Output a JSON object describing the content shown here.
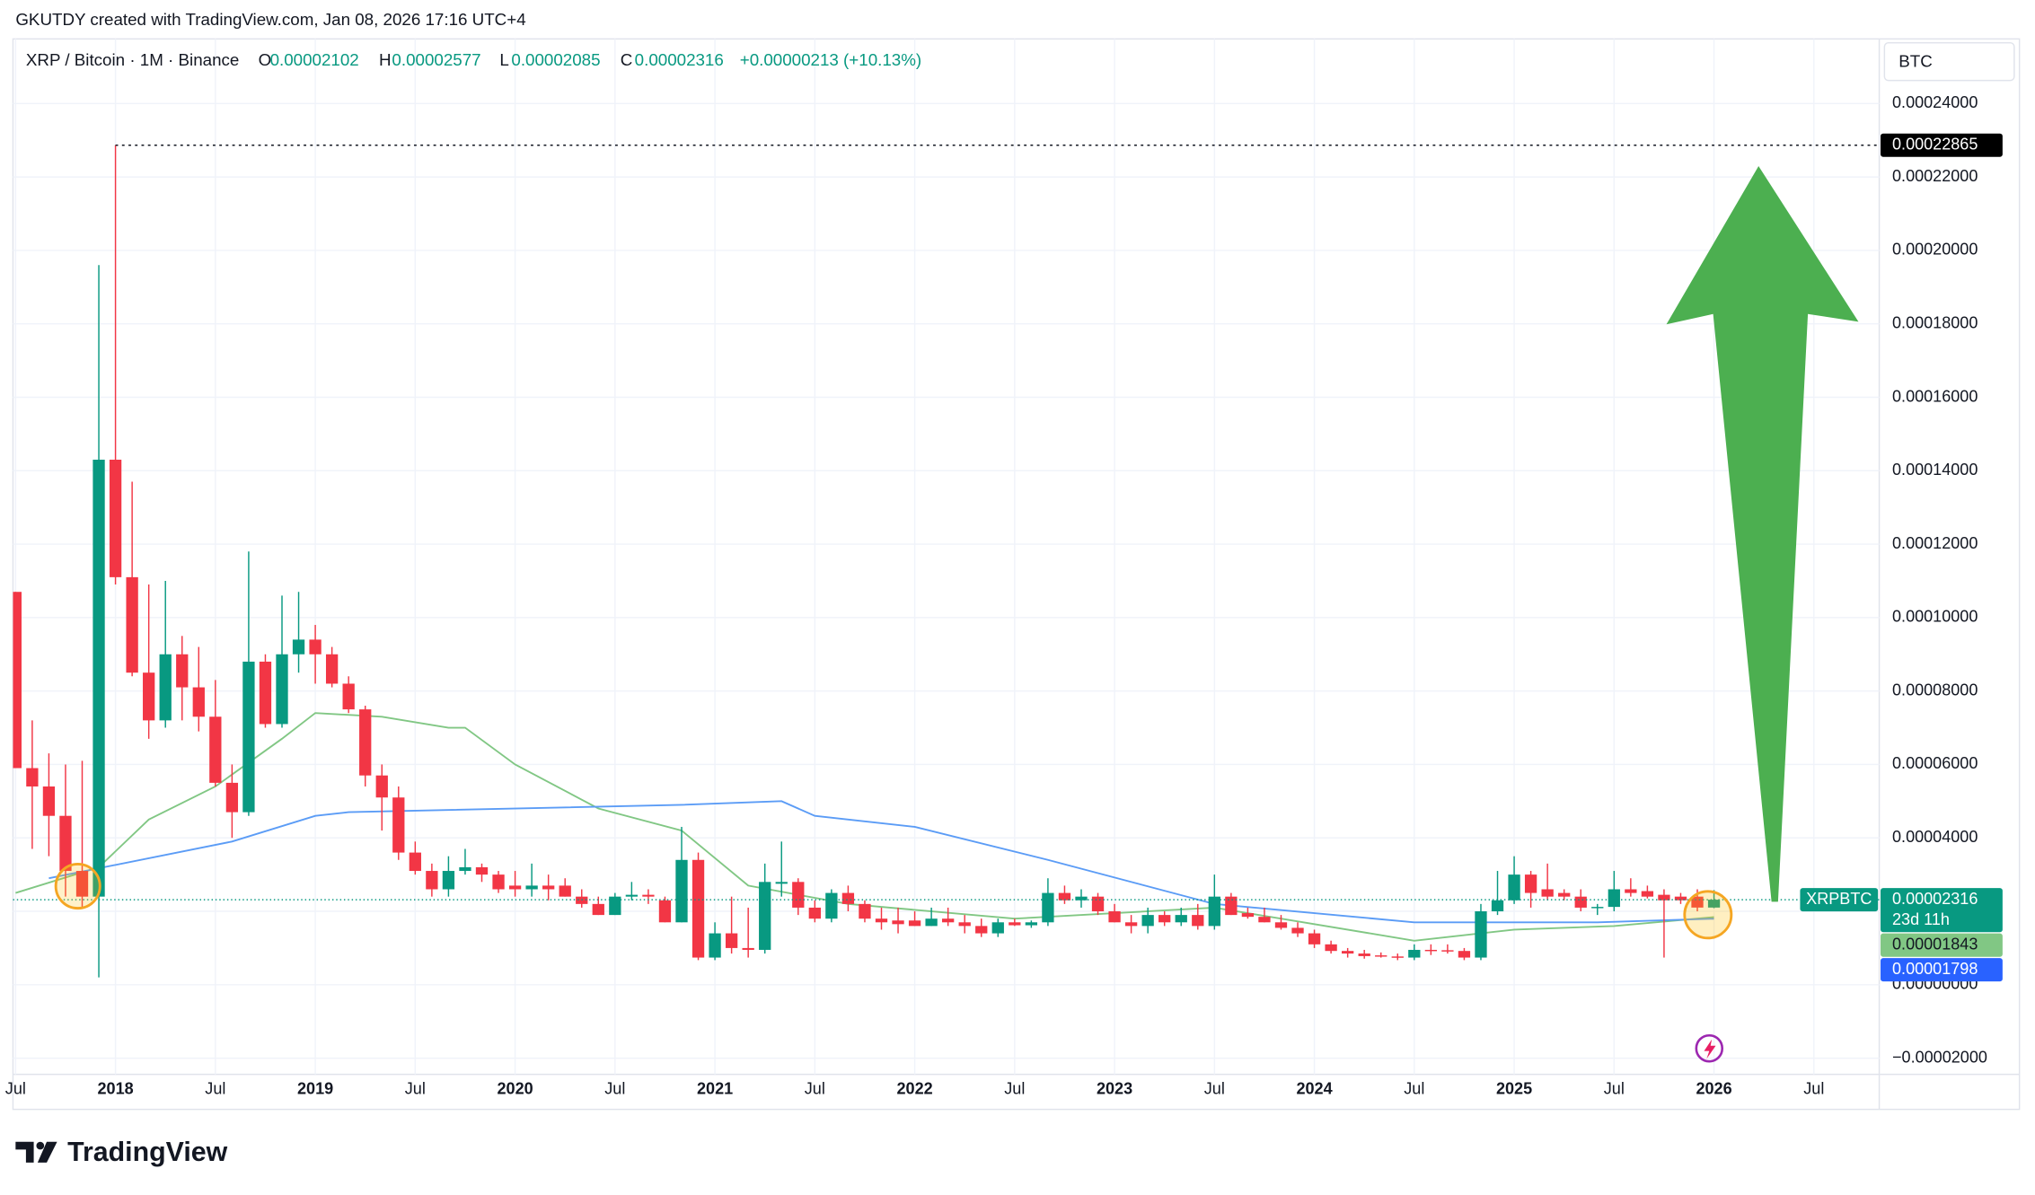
{
  "header": {
    "attribution": "GKUTDY created with TradingView.com, Jan 08, 2026 17:16 UTC+4",
    "symbol": "XRP / Bitcoin · 1M · Binance",
    "open_label": "O",
    "high_label": "H",
    "low_label": "L",
    "close_label": "C",
    "change": "+0.00000213 (+10.13%)"
  },
  "currency": "BTC",
  "countdown": "23d 11h",
  "brand": "TradingView",
  "chart_data": {
    "type": "candlestick",
    "categories": [
      "2017-07",
      "2017-08",
      "2017-09",
      "2017-10",
      "2017-11",
      "2017-12",
      "2018-01",
      "2018-02",
      "2018-03",
      "2018-04",
      "2018-05",
      "2018-06",
      "2018-07",
      "2018-08",
      "2018-09",
      "2018-10",
      "2018-11",
      "2018-12",
      "2019-01",
      "2019-02",
      "2019-03",
      "2019-04",
      "2019-05",
      "2019-06",
      "2019-07",
      "2019-08",
      "2019-09",
      "2019-10",
      "2019-11",
      "2019-12",
      "2020-01",
      "2020-02",
      "2020-03",
      "2020-04",
      "2020-05",
      "2020-06",
      "2020-07",
      "2020-08",
      "2020-09",
      "2020-10",
      "2020-11",
      "2020-12",
      "2021-01",
      "2021-02",
      "2021-03",
      "2021-04",
      "2021-05",
      "2021-06",
      "2021-07",
      "2021-08",
      "2021-09",
      "2021-10",
      "2021-11",
      "2021-12",
      "2022-01",
      "2022-02",
      "2022-03",
      "2022-04",
      "2022-05",
      "2022-06",
      "2022-07",
      "2022-08",
      "2022-09",
      "2022-10",
      "2022-11",
      "2022-12",
      "2023-01",
      "2023-02",
      "2023-03",
      "2023-04",
      "2023-05",
      "2023-06",
      "2023-07",
      "2023-08",
      "2023-09",
      "2023-10",
      "2023-11",
      "2023-12",
      "2024-01",
      "2024-02",
      "2024-03",
      "2024-04",
      "2024-05",
      "2024-06",
      "2024-07",
      "2024-08",
      "2024-09",
      "2024-10",
      "2024-11",
      "2024-12",
      "2025-01",
      "2025-02",
      "2025-03",
      "2025-04",
      "2025-05",
      "2025-06",
      "2025-07",
      "2025-08",
      "2025-09",
      "2025-10",
      "2025-11",
      "2025-12",
      "2026-01"
    ],
    "series": [
      {
        "name": "XRPBTC",
        "up_color": "#089981",
        "down_color": "#f23645",
        "open": [
          0.000107,
          5.9e-05,
          5.4e-05,
          4.6e-05,
          3.1e-05,
          2.4e-05,
          0.000143,
          0.000111,
          8.5e-05,
          7.2e-05,
          9e-05,
          8.1e-05,
          7.3e-05,
          5.5e-05,
          4.7e-05,
          8.8e-05,
          7.1e-05,
          9e-05,
          9.4e-05,
          9e-05,
          8.2e-05,
          7.5e-05,
          5.7e-05,
          5.1e-05,
          3.6e-05,
          3.1e-05,
          2.6e-05,
          3.1e-05,
          3.2e-05,
          3e-05,
          2.7e-05,
          2.6e-05,
          2.7e-05,
          2.7e-05,
          2.4e-05,
          2.2e-05,
          1.9e-05,
          2.4e-05,
          2.45e-05,
          2.3e-05,
          1.7e-05,
          3.4e-05,
          7.4e-06,
          1.4e-05,
          1e-05,
          9.5e-06,
          2.75e-05,
          2.8e-05,
          2.1e-05,
          1.8e-05,
          2.5e-05,
          2.2e-05,
          1.8e-05,
          1.75e-05,
          1.75e-05,
          1.6e-05,
          1.8e-05,
          1.7e-05,
          1.6e-05,
          1.4e-05,
          1.7e-05,
          1.62e-05,
          1.7e-05,
          2.5e-05,
          2.3e-05,
          2.4e-05,
          2e-05,
          1.7e-05,
          1.6e-05,
          1.9e-05,
          1.7e-05,
          1.9e-05,
          1.6e-05,
          2.4e-05,
          1.95e-05,
          1.85e-05,
          1.7e-05,
          1.55e-05,
          1.4e-05,
          1.1e-05,
          9.2e-06,
          8.5e-06,
          8e-06,
          7.7e-06,
          7.4e-06,
          9.5e-06,
          9.4e-06,
          9.2e-06,
          7.4e-06,
          2e-05,
          2.3e-05,
          3e-05,
          2.6e-05,
          2.5e-05,
          2.4e-05,
          2.1e-05,
          2.12e-05,
          2.6e-05,
          2.55e-05,
          2.45e-05,
          2.4e-05,
          2.4e-05,
          2.102e-05
        ],
        "high": [
          0.000107,
          7.2e-05,
          6.3e-05,
          6e-05,
          6.1e-05,
          0.000196,
          0.00022865,
          0.000137,
          0.000109,
          0.00011,
          9.5e-05,
          9.2e-05,
          8.3e-05,
          6e-05,
          0.000118,
          9e-05,
          0.000106,
          0.000107,
          9.8e-05,
          9.2e-05,
          8.4e-05,
          7.6e-05,
          6e-05,
          5.4e-05,
          3.9e-05,
          3.3e-05,
          3.5e-05,
          3.7e-05,
          3.3e-05,
          3.1e-05,
          3.1e-05,
          3.3e-05,
          3e-05,
          2.9e-05,
          2.6e-05,
          2.4e-05,
          2.5e-05,
          2.8e-05,
          2.6e-05,
          2.4e-05,
          4.3e-05,
          3.6e-05,
          1.7e-05,
          2.4e-05,
          2.1e-05,
          3.3e-05,
          3.9e-05,
          2.9e-05,
          2.3e-05,
          2.6e-05,
          2.7e-05,
          2.3e-05,
          2.1e-05,
          2.1e-05,
          2e-05,
          2.1e-05,
          2.1e-05,
          1.9e-05,
          1.8e-05,
          1.8e-05,
          1.8e-05,
          1.75e-05,
          2.9e-05,
          2.7e-05,
          2.6e-05,
          2.5e-05,
          2.2e-05,
          1.9e-05,
          2.1e-05,
          2e-05,
          2.1e-05,
          2.2e-05,
          3e-05,
          2.5e-05,
          2.1e-05,
          2.1e-05,
          1.9e-05,
          1.7e-05,
          1.5e-05,
          1.2e-05,
          1e-05,
          9.5e-06,
          8.8e-06,
          8.5e-06,
          1.1e-05,
          1.1e-05,
          1.1e-05,
          1e-05,
          2.2e-05,
          3.1e-05,
          3.5e-05,
          3.1e-05,
          3.3e-05,
          2.6e-05,
          2.6e-05,
          2.2e-05,
          3.1e-05,
          2.9e-05,
          2.7e-05,
          2.6e-05,
          2.5e-05,
          2.6e-05,
          2.577e-05
        ],
        "low": [
          5.9e-05,
          3.7e-05,
          3.5e-05,
          2.4e-05,
          2.1e-05,
          2e-06,
          0.000109,
          8.4e-05,
          6.7e-05,
          7e-05,
          7.2e-05,
          6.9e-05,
          5.4e-05,
          4e-05,
          4.6e-05,
          7e-05,
          7e-05,
          8.5e-05,
          8.2e-05,
          8.1e-05,
          7.4e-05,
          5.4e-05,
          4.2e-05,
          3.4e-05,
          3e-05,
          2.4e-05,
          2.4e-05,
          3e-05,
          2.8e-05,
          2.5e-05,
          2.4e-05,
          2.4e-05,
          2.3e-05,
          2.4e-05,
          2.1e-05,
          1.9e-05,
          1.9e-05,
          2.3e-05,
          2.2e-05,
          1.7e-05,
          1.7e-05,
          6.7e-06,
          6.7e-06,
          8.5e-06,
          7.4e-06,
          8.5e-06,
          2.4e-05,
          1.9e-05,
          1.7e-05,
          1.7e-05,
          2e-05,
          1.7e-05,
          1.5e-05,
          1.4e-05,
          1.6e-05,
          1.6e-05,
          1.6e-05,
          1.4e-05,
          1.3e-05,
          1.3e-05,
          1.6e-05,
          1.55e-05,
          1.6e-05,
          2.2e-05,
          2.1e-05,
          1.9e-05,
          1.7e-05,
          1.4e-05,
          1.4e-05,
          1.6e-05,
          1.6e-05,
          1.5e-05,
          1.5e-05,
          1.9e-05,
          1.8e-05,
          1.7e-05,
          1.5e-05,
          1.3e-05,
          1e-05,
          8.5e-06,
          7.4e-06,
          7.1e-06,
          7.4e-06,
          6.7e-06,
          6.7e-06,
          8.1e-06,
          8.5e-06,
          6.7e-06,
          6.7e-06,
          1.9e-05,
          2.2e-05,
          2.1e-05,
          2.3e-05,
          2.3e-05,
          2e-05,
          1.9e-05,
          2e-05,
          2.4e-05,
          2.35e-05,
          7.4e-06,
          2.2e-05,
          2e-05,
          2.085e-05
        ],
        "close": [
          5.9e-05,
          5.4e-05,
          4.6e-05,
          3.1e-05,
          2.4e-05,
          0.000143,
          0.000111,
          8.5e-05,
          7.2e-05,
          9e-05,
          8.1e-05,
          7.3e-05,
          5.5e-05,
          4.7e-05,
          8.8e-05,
          7.1e-05,
          9e-05,
          9.4e-05,
          9e-05,
          8.2e-05,
          7.5e-05,
          5.7e-05,
          5.1e-05,
          3.6e-05,
          3.1e-05,
          2.6e-05,
          3.1e-05,
          3.2e-05,
          3e-05,
          2.6e-05,
          2.6e-05,
          2.7e-05,
          2.6e-05,
          2.4e-05,
          2.2e-05,
          1.9e-05,
          2.4e-05,
          2.45e-05,
          2.4e-05,
          1.7e-05,
          3.4e-05,
          7.4e-06,
          1.4e-05,
          1e-05,
          9.5e-06,
          2.8e-05,
          2.8e-05,
          2.1e-05,
          1.8e-05,
          2.5e-05,
          2.2e-05,
          1.8e-05,
          1.7e-05,
          1.65e-05,
          1.6e-05,
          1.8e-05,
          1.7e-05,
          1.6e-05,
          1.4e-05,
          1.7e-05,
          1.62e-05,
          1.7e-05,
          2.5e-05,
          2.3e-05,
          2.4e-05,
          2e-05,
          1.7e-05,
          1.6e-05,
          1.9e-05,
          1.7e-05,
          1.9e-05,
          1.6e-05,
          2.4e-05,
          1.9e-05,
          1.85e-05,
          1.7e-05,
          1.55e-05,
          1.4e-05,
          1.1e-05,
          9.2e-06,
          8.5e-06,
          7.8e-06,
          7.7e-06,
          7.4e-06,
          9.5e-06,
          9.2e-06,
          9.1e-06,
          7.4e-06,
          2e-05,
          2.3e-05,
          3e-05,
          2.5e-05,
          2.4e-05,
          2.4e-05,
          2.1e-05,
          2.12e-05,
          2.6e-05,
          2.5e-05,
          2.4e-05,
          2.3e-05,
          2.3e-05,
          2.102e-05,
          2.316e-05
        ]
      }
    ],
    "moving_averages": [
      {
        "color": "#81c784",
        "x": [
          "2017-07",
          "2017-12",
          "2018-03",
          "2018-07",
          "2018-11",
          "2019-01",
          "2019-05",
          "2019-09",
          "2019-10",
          "2020-01",
          "2020-06",
          "2020-11",
          "2021-03",
          "2021-09",
          "2022-07",
          "2023-07",
          "2024-07",
          "2025-01",
          "2025-07",
          "2026-01"
        ],
        "values": [
          2.5e-05,
          3.2e-05,
          4.5e-05,
          5.4e-05,
          6.7e-05,
          7.4e-05,
          7.3e-05,
          7e-05,
          7e-05,
          6e-05,
          4.8e-05,
          4.2e-05,
          2.7e-05,
          2.2e-05,
          1.8e-05,
          2.1e-05,
          1.2e-05,
          1.5e-05,
          1.6e-05,
          1.843e-05
        ]
      },
      {
        "color": "#5b9cf6",
        "x": [
          "2017-09",
          "2018-08",
          "2019-01",
          "2019-03",
          "2020-11",
          "2021-05",
          "2021-07",
          "2022-01",
          "2022-09",
          "2023-07",
          "2024-07",
          "2025-06",
          "2026-01"
        ],
        "values": [
          2.9e-05,
          3.9e-05,
          4.6e-05,
          4.7e-05,
          4.9e-05,
          5e-05,
          4.6e-05,
          4.3e-05,
          3.4e-05,
          2.2e-05,
          1.7e-05,
          1.7e-05,
          1.798e-05
        ]
      }
    ],
    "ylim": [
      -2.44e-05,
      0.0002576
    ],
    "yticks": [
      {
        "value": -2e-05,
        "label": "−0.00002000"
      },
      {
        "value": 0,
        "label": "0.00000000"
      },
      {
        "value": 2e-05,
        "label": "0.00002000"
      },
      {
        "value": 4e-05,
        "label": "0.00004000"
      },
      {
        "value": 6e-05,
        "label": "0.00006000"
      },
      {
        "value": 8e-05,
        "label": "0.00008000"
      },
      {
        "value": 0.0001,
        "label": "0.00010000"
      },
      {
        "value": 0.00012,
        "label": "0.00012000"
      },
      {
        "value": 0.00014,
        "label": "0.00014000"
      },
      {
        "value": 0.00016,
        "label": "0.00016000"
      },
      {
        "value": 0.00018,
        "label": "0.00018000"
      },
      {
        "value": 0.0002,
        "label": "0.00020000"
      },
      {
        "value": 0.00022,
        "label": "0.00022000"
      },
      {
        "value": 0.00024,
        "label": "0.00024000"
      }
    ],
    "xticks": [
      {
        "value": "2017-07",
        "label": "Jul"
      },
      {
        "value": "2018-01",
        "label": "2018"
      },
      {
        "value": "2018-07",
        "label": "Jul"
      },
      {
        "value": "2019-01",
        "label": "2019"
      },
      {
        "value": "2019-07",
        "label": "Jul"
      },
      {
        "value": "2020-01",
        "label": "2020"
      },
      {
        "value": "2020-07",
        "label": "Jul"
      },
      {
        "value": "2021-01",
        "label": "2021"
      },
      {
        "value": "2021-07",
        "label": "Jul"
      },
      {
        "value": "2022-01",
        "label": "2022"
      },
      {
        "value": "2022-07",
        "label": "Jul"
      },
      {
        "value": "2023-01",
        "label": "2023"
      },
      {
        "value": "2023-07",
        "label": "Jul"
      },
      {
        "value": "2024-01",
        "label": "2024"
      },
      {
        "value": "2024-07",
        "label": "Jul"
      },
      {
        "value": "2025-01",
        "label": "2025"
      },
      {
        "value": "2025-07",
        "label": "Jul"
      },
      {
        "value": "2026-01",
        "label": "2026"
      },
      {
        "value": "2026-07",
        "label": "Jul"
      }
    ],
    "grid": true
  }
}
